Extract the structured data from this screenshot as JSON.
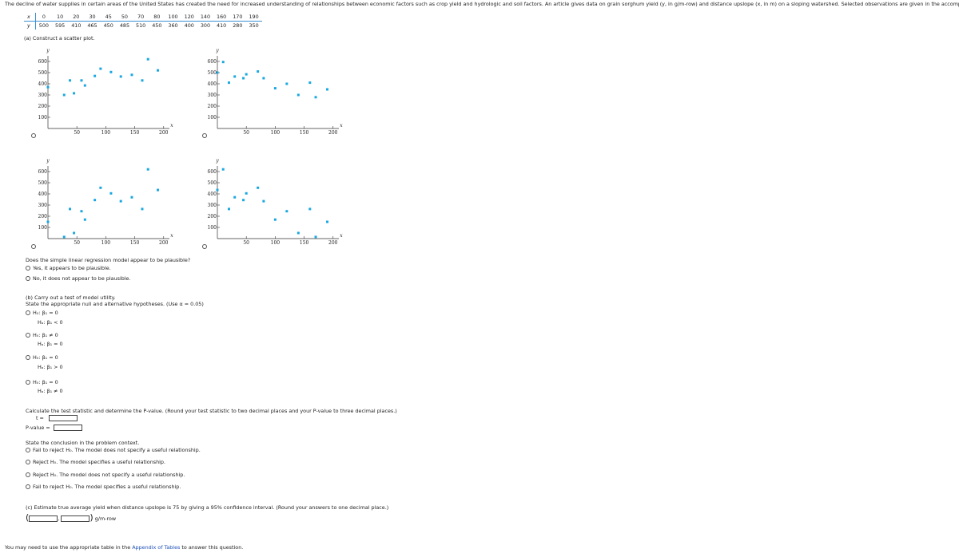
{
  "intro": "The decline of water supplies in certain areas of the United States has created the need for increased understanding of relationships between economic factors such as crop yield and hydrologic and soil factors. An article gives data on grain sorghum yield (y, in g/m-row) and distance upslope (x, in m) on a sloping watershed. Selected observations are given in the accompanying table.",
  "table": {
    "headers": [
      "x",
      "y"
    ],
    "x": [
      0,
      10,
      20,
      30,
      45,
      50,
      70,
      80,
      100,
      120,
      140,
      160,
      170,
      190
    ],
    "y": [
      500,
      595,
      410,
      465,
      450,
      485,
      510,
      450,
      360,
      400,
      300,
      410,
      280,
      350
    ]
  },
  "part_a": {
    "label": "(a) Construct a scatter plot.",
    "question": "Does the simple linear regression model appear to be plausible?",
    "options": [
      "Yes, it appears to be plausible.",
      "No, it does not appear to be plausible."
    ]
  },
  "chart_data": [
    {
      "type": "scatter",
      "x_label": "x",
      "y_label": "y",
      "color": "#1aa8e0",
      "x": [
        0,
        28,
        38,
        45,
        58,
        64,
        81,
        91,
        109,
        126,
        145,
        163,
        173,
        190
      ],
      "values": [
        370,
        300,
        430,
        315,
        430,
        385,
        470,
        535,
        505,
        465,
        480,
        430,
        620,
        520
      ],
      "xlim": [
        0,
        210
      ],
      "ylim": [
        0,
        650
      ],
      "xticks": [
        50,
        100,
        150,
        200
      ],
      "yticks": [
        100,
        200,
        300,
        400,
        500,
        600
      ]
    },
    {
      "type": "scatter",
      "x_label": "x",
      "y_label": "y",
      "color": "#1aa8e0",
      "x": [
        0,
        10,
        20,
        30,
        45,
        50,
        70,
        80,
        100,
        120,
        140,
        160,
        170,
        190
      ],
      "values": [
        500,
        595,
        410,
        465,
        450,
        485,
        510,
        450,
        360,
        400,
        300,
        410,
        280,
        350
      ],
      "xlim": [
        0,
        210
      ],
      "ylim": [
        0,
        650
      ],
      "xticks": [
        50,
        100,
        150,
        200
      ],
      "yticks": [
        100,
        200,
        300,
        400,
        500,
        600
      ]
    },
    {
      "type": "scatter",
      "x_label": "x",
      "y_label": "y",
      "color": "#1aa8e0",
      "x": [
        0,
        28,
        38,
        45,
        58,
        64,
        81,
        91,
        109,
        126,
        145,
        163,
        173,
        190
      ],
      "values": [
        150,
        15,
        265,
        50,
        245,
        170,
        345,
        455,
        405,
        335,
        370,
        265,
        620,
        435
      ],
      "xlim": [
        0,
        210
      ],
      "ylim": [
        0,
        650
      ],
      "xticks": [
        50,
        100,
        150,
        200
      ],
      "yticks": [
        100,
        200,
        300,
        400,
        500,
        600
      ]
    },
    {
      "type": "scatter",
      "x_label": "x",
      "y_label": "y",
      "color": "#1aa8e0",
      "x": [
        0,
        10,
        20,
        30,
        45,
        50,
        70,
        80,
        100,
        120,
        140,
        160,
        170,
        190
      ],
      "values": [
        435,
        620,
        265,
        370,
        345,
        405,
        455,
        335,
        170,
        245,
        50,
        265,
        15,
        150
      ],
      "xlim": [
        0,
        210
      ],
      "ylim": [
        0,
        650
      ],
      "xticks": [
        50,
        100,
        150,
        200
      ],
      "yticks": [
        100,
        200,
        300,
        400,
        500,
        600
      ]
    }
  ],
  "part_b": {
    "label": "(b) Carry out a test of model utility.",
    "instruction": "State the appropriate null and alternative hypotheses. (Use α = 0.05)",
    "hypotheses": [
      {
        "h0": "H₀: β₁ = 0",
        "ha": "Hₐ: β₁ < 0"
      },
      {
        "h0": "H₀: β₁ ≠ 0",
        "ha": "Hₐ: β₁ = 0"
      },
      {
        "h0": "H₀: β₁ = 0",
        "ha": "Hₐ: β₁ > 0"
      },
      {
        "h0": "H₀: β₁ = 0",
        "ha": "Hₐ: β₁ ≠ 0"
      }
    ],
    "calc_instruction": "Calculate the test statistic and determine the P-value. (Round your test statistic to two decimal places and your P-value to three decimal places.)",
    "t_label": "t =",
    "p_label": "P-value =",
    "conclusion_prompt": "State the conclusion in the problem context.",
    "conclusions": [
      "Fail to reject H₀. The model does not specify a useful relationship.",
      "Reject H₀. The model specifies a useful relationship.",
      "Reject H₀. The model does not specify a useful relationship.",
      "Fail to reject H₀. The model specifies a useful relationship."
    ]
  },
  "part_c": {
    "label": "(c) Estimate true average yield when distance upslope is 75 by giving a 95% confidence interval. (Round your answers to one decimal place.)",
    "open": "(",
    "separator": ",",
    "close": ")",
    "unit": "g/m-row"
  },
  "footer": {
    "before": "You may need to use the appropriate table in the ",
    "link": "Appendix of Tables",
    "after": " to answer this question."
  }
}
